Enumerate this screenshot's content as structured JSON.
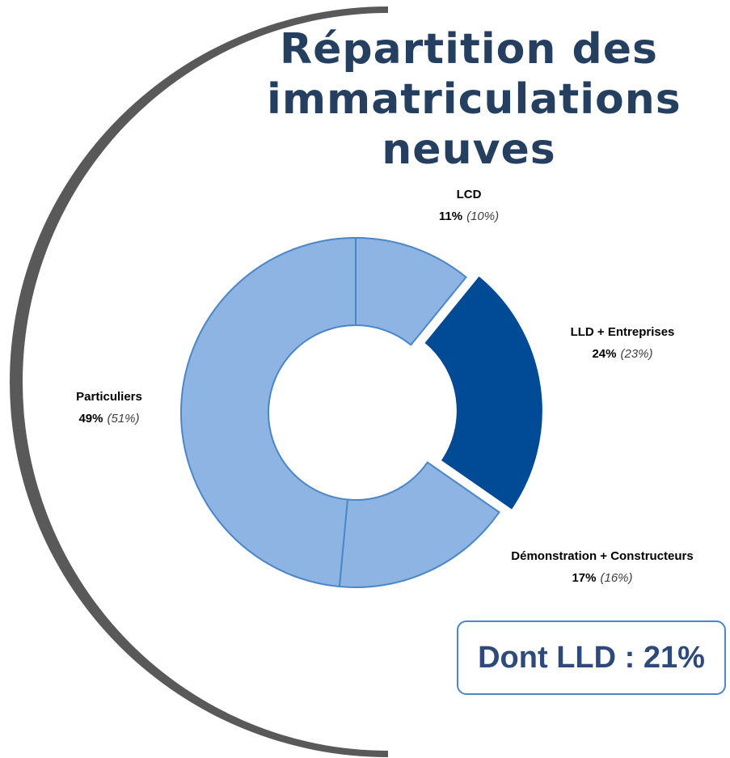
{
  "chart_data": {
    "type": "donut",
    "title": "Répartition des immatriculations neuves",
    "categories": [
      "LCD",
      "LLD + Entreprises",
      "Démonstration + Constructeurs",
      "Particuliers"
    ],
    "values": [
      11,
      24,
      17,
      49
    ],
    "value_labels": [
      "11%",
      "24%",
      "17%",
      "49%"
    ],
    "previous_values": [
      10,
      23,
      16,
      51
    ],
    "previous_value_labels": [
      "(10%)",
      "(23%)",
      "(16%)",
      "(51%)"
    ],
    "colors": [
      "#8eb4e3",
      "#004a96",
      "#8eb4e3",
      "#8eb4e3"
    ],
    "exploded": [
      false,
      true,
      false,
      false
    ],
    "annotation": "Dont LLD : 21%"
  }
}
